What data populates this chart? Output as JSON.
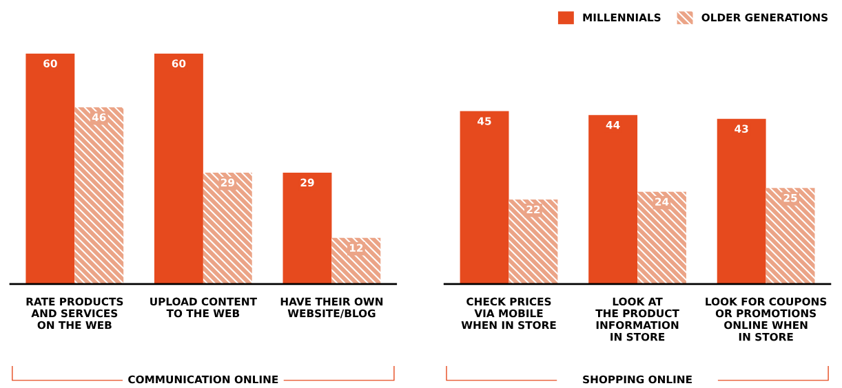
{
  "chart_data": [
    {
      "type": "bar",
      "xlabel": "COMMUNICATION ONLINE",
      "categories": [
        "RATE PRODUCTS\nAND SERVICES\nON THE WEB",
        "UPLOAD CONTENT\nTO THE WEB",
        "HAVE THEIR OWN\nWEBSITE/BLOG"
      ],
      "data_labels": true,
      "legend": "top right",
      "series": [
        {
          "name": "MILLENNIALS",
          "color": "#e64a1e",
          "values": [
            60,
            60,
            29
          ]
        },
        {
          "name": "OLDER GENERATIONS",
          "color": "#eba487",
          "values": [
            46,
            29,
            12
          ]
        }
      ]
    },
    {
      "type": "bar",
      "xlabel": "SHOPPING ONLINE",
      "categories": [
        "CHECK PRICES\nVIA MOBILE\nWHEN IN STORE",
        "LOOK AT\nTHE PRODUCT\nINFORMATION\nIN STORE",
        "LOOK FOR COUPONS\nOR PROMOTIONS\nONLINE WHEN\nIN STORE"
      ],
      "data_labels": true,
      "series": [
        {
          "color": "#e64a1e",
          "values": [
            45,
            44,
            43
          ]
        },
        {
          "color": "#eba487",
          "values": [
            22,
            24,
            25
          ]
        }
      ]
    }
  ]
}
